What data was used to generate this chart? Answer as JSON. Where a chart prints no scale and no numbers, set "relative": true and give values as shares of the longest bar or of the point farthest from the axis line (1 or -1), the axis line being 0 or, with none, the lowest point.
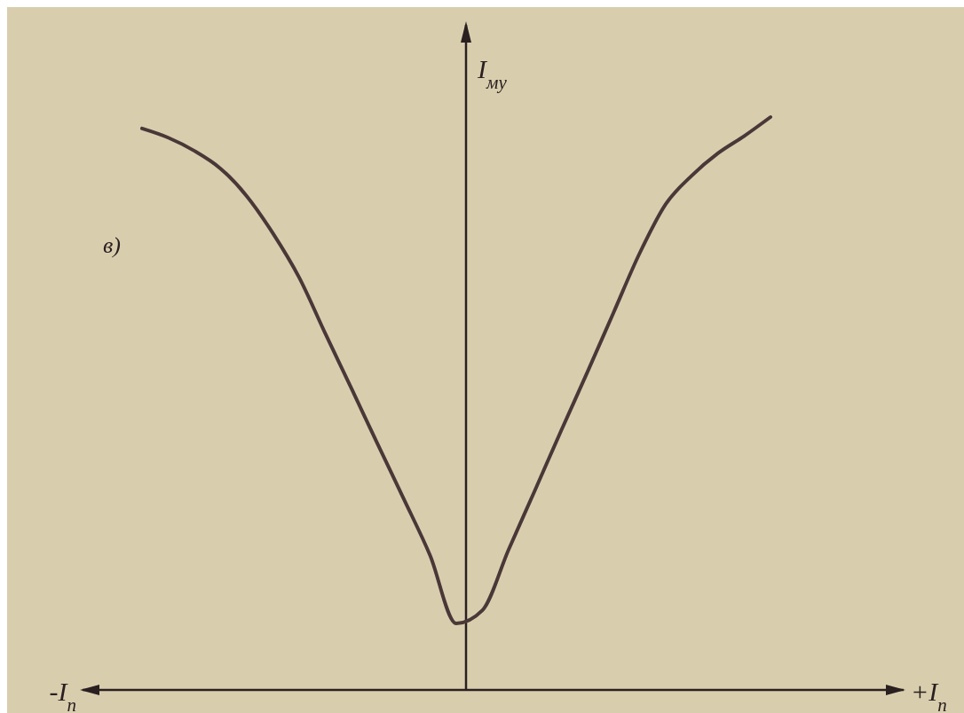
{
  "chart_data": {
    "type": "line",
    "relative": true,
    "ylabel": "I$_{му}$",
    "xlabel": "+I$_{п}$",
    "annotations": [
      "-I$_{п}$",
      "в)"
    ],
    "categories": [
      null,
      null,
      null,
      null,
      null,
      null,
      null,
      null,
      null,
      null,
      null,
      null,
      null,
      null,
      null,
      null,
      null,
      null,
      null,
      null,
      null,
      null,
      null,
      null,
      null
    ],
    "series": [
      {
        "color": "#4a3838",
        "values": [
          0.98,
          0.964,
          0.941,
          0.91,
          0.862,
          0.797,
          0.72,
          0.622,
          0.526,
          0.429,
          0.333,
          0.235,
          0.116,
          0.139,
          0.245,
          0.348,
          0.452,
          0.554,
          0.658,
          0.762,
          0.848,
          0.898,
          0.937,
          0.967,
          1
        ]
      }
    ]
  }
}
